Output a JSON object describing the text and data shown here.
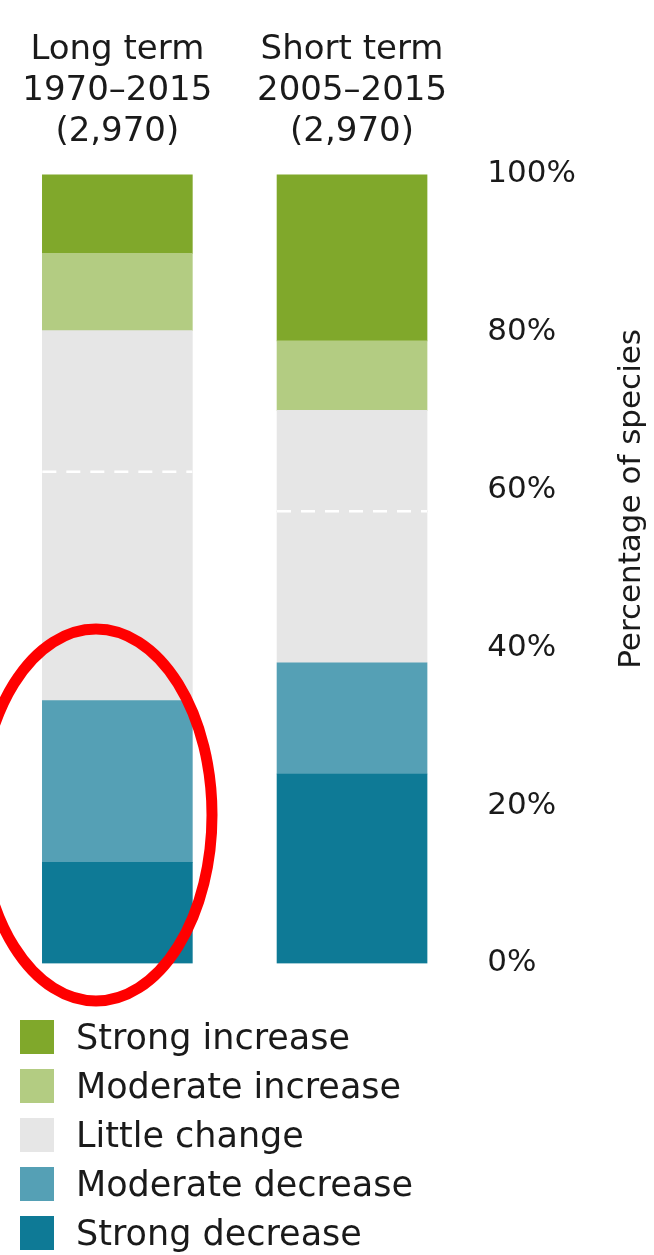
{
  "chart_data": {
    "type": "bar",
    "stacked": true,
    "ylabel": "Percentage of species",
    "categories": [
      "Long term\n1970–2015\n(2,970)",
      "Short term\n2005–2015\n(2,970)"
    ],
    "series": [
      {
        "name": "Strong decrease",
        "color": "#0e7a96",
        "values": [
          12.8,
          24.0
        ]
      },
      {
        "name": "Moderate decrease",
        "color": "#55a0b5",
        "values": [
          20.5,
          14.1
        ]
      },
      {
        "name": "Little change",
        "color": "#e6e6e6",
        "values": [
          29.0,
          19.2
        ]
      },
      {
        "color": "#e6e6e6",
        "line_style": "dashed",
        "values": [
          17.9,
          12.8
        ]
      },
      {
        "name": "Moderate increase",
        "color": "#b3cc82",
        "values": [
          9.8,
          8.8
        ]
      },
      {
        "name": "Strong increase",
        "color": "#80a82b",
        "values": [
          10.0,
          21.1
        ]
      }
    ],
    "ylim": [
      0,
      100
    ],
    "yticks": [
      {
        "value": 0,
        "label": "0%"
      },
      {
        "value": 20,
        "label": "20%"
      },
      {
        "value": 40,
        "label": "40%"
      },
      {
        "value": 60,
        "label": "60%"
      },
      {
        "value": 80,
        "label": "80%"
      },
      {
        "value": 100,
        "label": "100%"
      }
    ],
    "grid": false,
    "legend": "bottom"
  }
}
